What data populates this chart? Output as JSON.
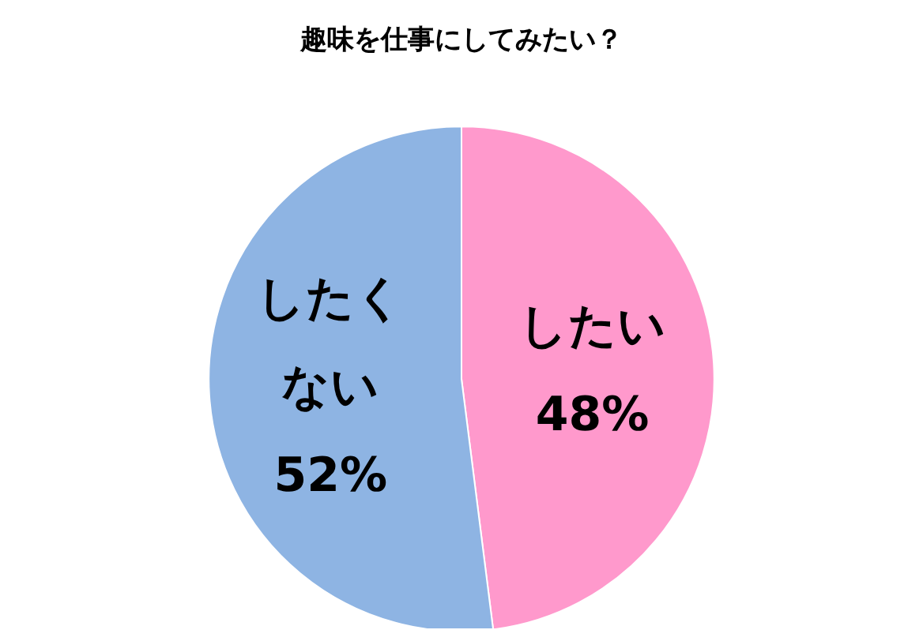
{
  "chart_data": {
    "type": "pie",
    "title": "趣味を仕事にしてみたい？",
    "categories": [
      "したい",
      "したくない"
    ],
    "values": [
      48,
      52
    ],
    "value_labels": [
      "48%",
      "52%"
    ],
    "colors": [
      "#ff99cc",
      "#8eb4e3"
    ],
    "legend": false
  }
}
